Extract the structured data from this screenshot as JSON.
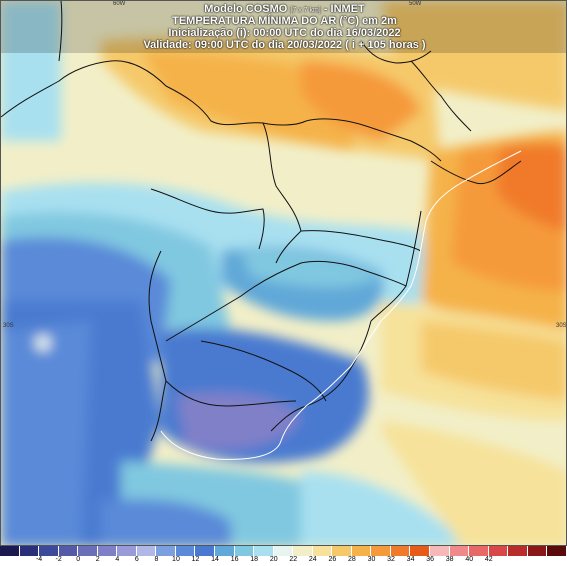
{
  "header": {
    "line1_main": "Modelo COSMO",
    "line1_small": "[7 x 7 km]",
    "line1_tail": "- INMET",
    "line2": "TEMPERATURA MÍNIMA DO AR (°C) em 2m",
    "line3": "Inicialização (i): 00:00 UTC do dia 16/03/2022",
    "line4": "Validade: 09:00 UTC do dia 20/03/2022 ( i + 105 horas )"
  },
  "axis_labels": {
    "lon_60w": "60W",
    "lon_50w": "50W",
    "lat_30s_left": "30S",
    "lat_30s_right": "30S"
  },
  "legend": {
    "colors": [
      "#1a1a50",
      "#2a2f7a",
      "#3b4a9a",
      "#555aa8",
      "#6a6fb8",
      "#8080c8",
      "#9a9ad8",
      "#b0b8e8",
      "#7aa0e0",
      "#5a8ad8",
      "#4a7ad0",
      "#60a8d8",
      "#80c8e0",
      "#a8e0f0",
      "#e8f4f0",
      "#f2efc8",
      "#f6e29a",
      "#f5c96a",
      "#f5b24a",
      "#f59a3a",
      "#f07a2a",
      "#e85a1a",
      "#f6b8b8",
      "#f08a8a",
      "#e86868",
      "#d84848",
      "#b82c2c",
      "#8a1818",
      "#5a0a0a"
    ],
    "ticks": [
      "-4",
      "-2",
      "0",
      "2",
      "4",
      "6",
      "8",
      "10",
      "12",
      "14",
      "16",
      "18",
      "20",
      "22",
      "24",
      "26",
      "28",
      "30",
      "32",
      "34",
      "36",
      "38",
      "40",
      "42"
    ]
  }
}
